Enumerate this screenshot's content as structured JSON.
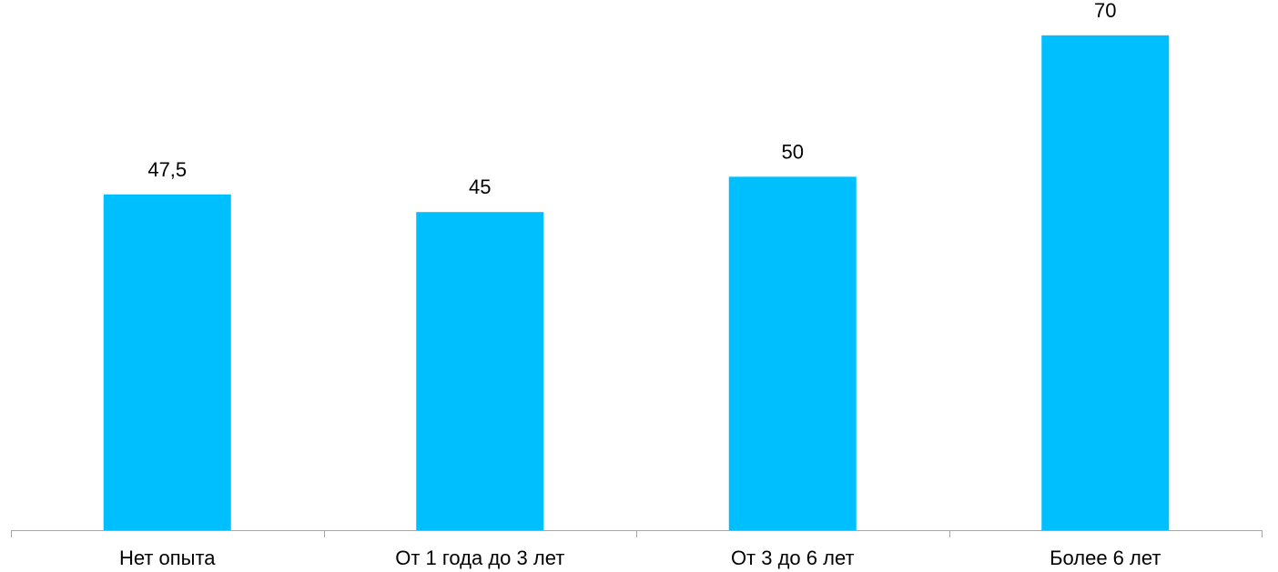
{
  "chart_data": {
    "type": "bar",
    "categories": [
      "Нет опыта",
      "От 1 года до 3 лет",
      "От 3 до 6 лет",
      "Более 6 лет"
    ],
    "values": [
      47.5,
      45,
      50,
      70
    ],
    "value_labels": [
      "47,5",
      "45",
      "50",
      "70"
    ],
    "title": "",
    "xlabel": "",
    "ylabel": "",
    "ylim": [
      0,
      75
    ],
    "grid": false,
    "legend": "none",
    "bar_color": "#00BFFF",
    "axis_color": "#A6A6A6"
  }
}
